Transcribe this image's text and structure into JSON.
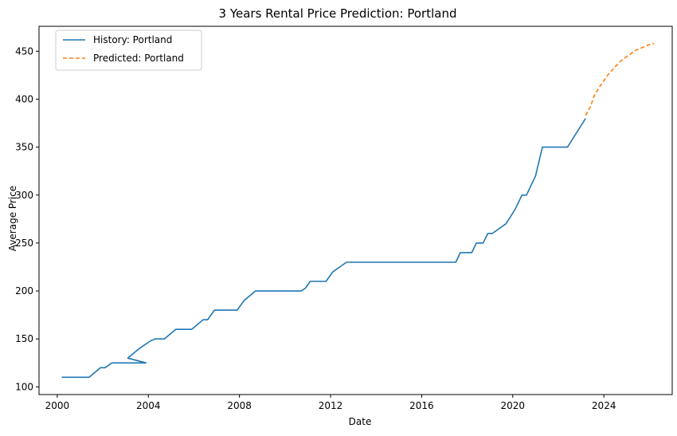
{
  "chart_data": {
    "type": "line",
    "title": "3 Years Rental Price Prediction: Portland",
    "xlabel": "Date",
    "ylabel": "Average Price",
    "xlim": [
      1999.2,
      2027.0
    ],
    "ylim": [
      92,
      476
    ],
    "x_ticks": [
      2000,
      2004,
      2008,
      2012,
      2016,
      2020,
      2024
    ],
    "x_tick_labels": [
      "2000",
      "2004",
      "2008",
      "2012",
      "2016",
      "2020",
      "2024"
    ],
    "y_ticks": [
      100,
      150,
      200,
      250,
      300,
      350,
      400,
      450
    ],
    "y_tick_labels": [
      "100",
      "150",
      "200",
      "250",
      "300",
      "350",
      "400",
      "450"
    ],
    "grid": false,
    "legend_position": "top-left",
    "series": [
      {
        "name": "History: Portland",
        "color": "#1f77b4",
        "style": "solid",
        "points": [
          [
            2000.2,
            110
          ],
          [
            2001.4,
            110
          ],
          [
            2001.9,
            120
          ],
          [
            2002.1,
            120
          ],
          [
            2002.4,
            125
          ],
          [
            2003.9,
            125
          ],
          [
            2003.1,
            130
          ],
          [
            2003.6,
            140
          ],
          [
            2004.1,
            148
          ],
          [
            2004.3,
            150
          ],
          [
            2004.7,
            150
          ],
          [
            2005.2,
            160
          ],
          [
            2005.9,
            160
          ],
          [
            2006.4,
            170
          ],
          [
            2006.6,
            170
          ],
          [
            2006.9,
            180
          ],
          [
            2007.9,
            180
          ],
          [
            2008.2,
            190
          ],
          [
            2008.7,
            200
          ],
          [
            2010.7,
            200
          ],
          [
            2010.9,
            203
          ],
          [
            2011.1,
            210
          ],
          [
            2011.8,
            210
          ],
          [
            2012.1,
            220
          ],
          [
            2012.7,
            230
          ],
          [
            2017.5,
            230
          ],
          [
            2017.7,
            240
          ],
          [
            2018.2,
            240
          ],
          [
            2018.4,
            250
          ],
          [
            2018.7,
            250
          ],
          [
            2018.9,
            260
          ],
          [
            2019.1,
            260
          ],
          [
            2019.7,
            270
          ],
          [
            2020.1,
            285
          ],
          [
            2020.4,
            300
          ],
          [
            2020.6,
            300
          ],
          [
            2021.0,
            320
          ],
          [
            2021.3,
            350
          ],
          [
            2022.4,
            350
          ],
          [
            2023.2,
            380
          ]
        ]
      },
      {
        "name": "Predicted: Portland",
        "color": "#ff7f0e",
        "style": "dashed",
        "points": [
          [
            2023.2,
            383
          ],
          [
            2023.4,
            392
          ],
          [
            2023.6,
            405
          ],
          [
            2023.9,
            416
          ],
          [
            2024.2,
            426
          ],
          [
            2024.5,
            434
          ],
          [
            2024.8,
            441
          ],
          [
            2025.1,
            446
          ],
          [
            2025.4,
            451
          ],
          [
            2025.7,
            454
          ],
          [
            2026.0,
            457
          ],
          [
            2026.2,
            458
          ]
        ]
      }
    ]
  }
}
